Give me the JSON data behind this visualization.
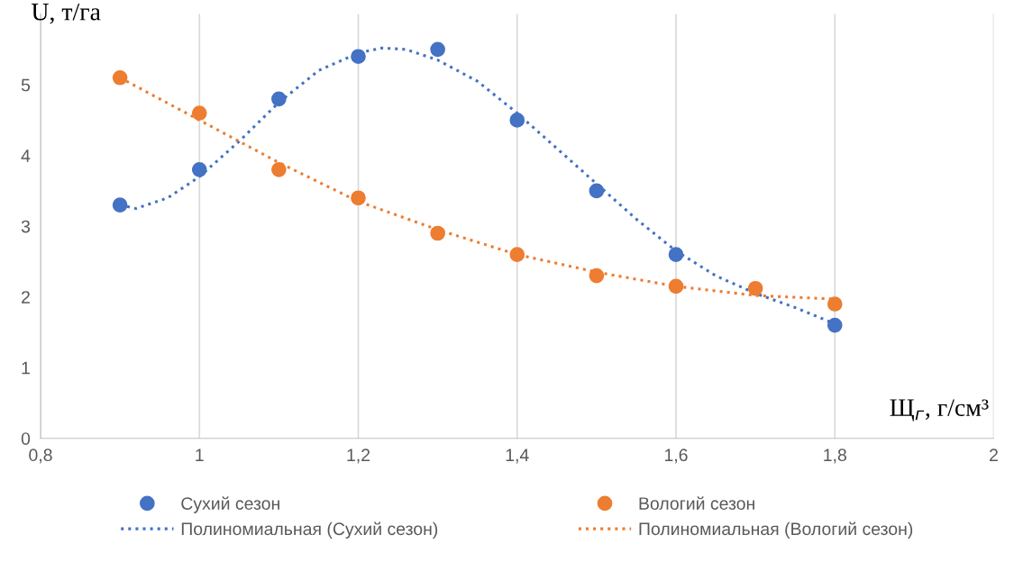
{
  "chart_data": {
    "type": "scatter",
    "xlabel": "Щ$_{г}$, г/см³",
    "ylabel": "U, т/га",
    "xlim": [
      0.8,
      2
    ],
    "xticks": [
      {
        "value": 0.8,
        "label": "0,8"
      },
      1,
      {
        "value": 1.2,
        "label": "1,2"
      },
      {
        "value": 1.4,
        "label": "1,4"
      },
      {
        "value": 1.6,
        "label": "1,6"
      },
      {
        "value": 1.8,
        "label": "1,8"
      },
      2
    ],
    "ylim": [
      0,
      6
    ],
    "yticks": [
      0,
      1,
      2,
      3,
      4,
      5
    ],
    "grid": "x",
    "legend": "bottom",
    "series": [
      {
        "name": "Сухий сезон",
        "marker": "circle",
        "color": "#4472c4",
        "x": [
          0.9,
          1.0,
          1.1,
          1.2,
          1.3,
          1.4,
          1.5,
          1.6,
          1.8
        ],
        "values": [
          3.3,
          3.8,
          4.8,
          5.4,
          5.5,
          4.5,
          3.5,
          2.6,
          1.6
        ]
      },
      {
        "name": "Вологий сезон",
        "marker": "circle",
        "color": "#ed7d31",
        "x": [
          0.9,
          1.0,
          1.1,
          1.2,
          1.3,
          1.4,
          1.5,
          1.6,
          1.7,
          1.8
        ],
        "values": [
          5.1,
          4.6,
          3.8,
          3.4,
          2.9,
          2.6,
          2.3,
          2.15,
          2.12,
          1.9
        ]
      },
      {
        "name": "Полиномиальная (Сухий сезон)",
        "type": "line",
        "line_style": "dotted",
        "color": "#4472c4",
        "x": [
          0.9,
          0.92,
          0.96,
          1.0,
          1.05,
          1.1,
          1.15,
          1.2,
          1.23,
          1.26,
          1.3,
          1.35,
          1.4,
          1.45,
          1.5,
          1.55,
          1.6,
          1.65,
          1.7,
          1.75,
          1.8
        ],
        "values": [
          3.3,
          3.25,
          3.4,
          3.7,
          4.2,
          4.75,
          5.2,
          5.45,
          5.52,
          5.5,
          5.35,
          5.05,
          4.6,
          4.1,
          3.6,
          3.1,
          2.65,
          2.3,
          2.05,
          1.85,
          1.62
        ]
      },
      {
        "name": "Полиномиальная (Вологий сезон)",
        "type": "line",
        "line_style": "dotted",
        "color": "#ed7d31",
        "x": [
          0.9,
          1.0,
          1.1,
          1.2,
          1.3,
          1.4,
          1.5,
          1.6,
          1.7,
          1.8
        ],
        "values": [
          5.1,
          4.5,
          3.9,
          3.35,
          2.95,
          2.6,
          2.35,
          2.15,
          2.02,
          1.97
        ]
      }
    ]
  }
}
